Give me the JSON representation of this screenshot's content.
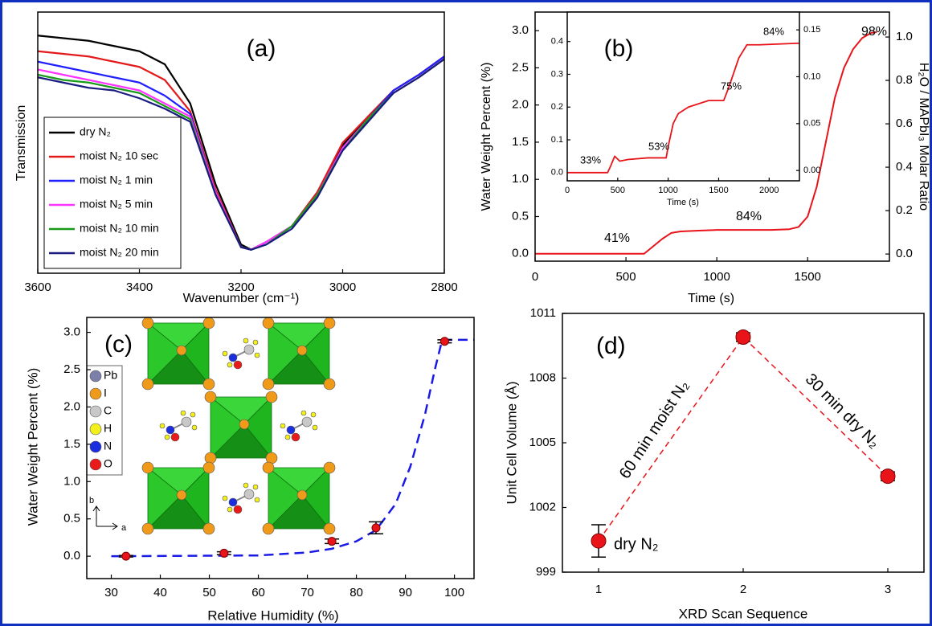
{
  "chart_data": [
    {
      "type": "line",
      "title": "(a)",
      "x_label": "Wavenumber (cm⁻¹)",
      "y_label": "Transmission",
      "x": [
        3600,
        3550,
        3500,
        3450,
        3400,
        3350,
        3300,
        3250,
        3200,
        3180,
        3150,
        3100,
        3050,
        3000,
        2950,
        2900,
        2850,
        2800
      ],
      "xlim": [
        3600,
        2800
      ],
      "xticks": [
        3600,
        3400,
        3200,
        3000,
        2800
      ],
      "ylim": [
        0,
        100
      ],
      "legend": "lower left",
      "series": [
        {
          "name": "dry N₂",
          "color": "#000000",
          "values": [
            91,
            90,
            89,
            87,
            85,
            80,
            65,
            34,
            11,
            9,
            12,
            18,
            31,
            49,
            60,
            70,
            76,
            83
          ]
        },
        {
          "name": "moist N₂ 10 sec",
          "color": "#e31a1c",
          "values": [
            85,
            84,
            83,
            81,
            79,
            74,
            62,
            32,
            10,
            9,
            12,
            18,
            31,
            50,
            60,
            70,
            76,
            83
          ]
        },
        {
          "name": "moist N₂ 1 min",
          "color": "#1f1fff",
          "values": [
            81,
            79,
            77,
            75,
            73,
            68,
            61,
            31,
            10,
            9,
            12,
            18,
            30,
            48,
            59,
            70,
            76,
            83
          ]
        },
        {
          "name": "moist N₂ 5 min",
          "color": "#ff33ff",
          "values": [
            78,
            76,
            74,
            72,
            70,
            65,
            60,
            31,
            10,
            9,
            12,
            18,
            30,
            48,
            59,
            69,
            75,
            82
          ]
        },
        {
          "name": "moist N₂ 10 min",
          "color": "#1a9a1a",
          "values": [
            76,
            74,
            73,
            71,
            69,
            64,
            59,
            30,
            10,
            9,
            11,
            18,
            30,
            47,
            59,
            69,
            75,
            82
          ]
        },
        {
          "name": "moist N₂ 20 min",
          "color": "#1a1a80",
          "values": [
            75,
            73,
            71,
            70,
            67,
            63,
            58,
            30,
            10,
            9,
            11,
            17,
            29,
            47,
            58,
            69,
            75,
            82
          ]
        }
      ]
    },
    {
      "type": "line",
      "title": "(b)",
      "x_label": "Time (s)",
      "y_label": "Water Weight Percent (%)",
      "y2_label": "H₂O / MAPbI₃ Molar Ratio",
      "x": [
        0,
        600,
        650,
        700,
        750,
        800,
        900,
        1000,
        1100,
        1200,
        1300,
        1400,
        1450,
        1500,
        1550,
        1600,
        1650,
        1700,
        1750,
        1800,
        1850,
        1880
      ],
      "xlim": [
        0,
        1950
      ],
      "xticks": [
        0,
        500,
        1000,
        1500
      ],
      "ylim": [
        -0.1,
        3.25
      ],
      "yticks": [
        {
          "value": 0,
          "label": "0.0"
        },
        0.5,
        {
          "value": 1,
          "label": "1.0"
        },
        1.5,
        {
          "value": 2,
          "label": "2.0"
        },
        2.5,
        {
          "value": 3,
          "label": "3.0"
        }
      ],
      "y2lim": [
        -0.033,
        1.115
      ],
      "y2ticks": [
        {
          "value": 0,
          "label": "0.0"
        },
        0.2,
        0.4,
        0.6,
        0.8,
        {
          "value": 1,
          "label": "1.0"
        }
      ],
      "series": [
        {
          "color": "#e8141a",
          "values": [
            0,
            0,
            0.1,
            0.2,
            0.28,
            0.3,
            0.31,
            0.32,
            0.32,
            0.32,
            0.32,
            0.33,
            0.36,
            0.5,
            0.9,
            1.5,
            2.1,
            2.5,
            2.75,
            2.9,
            2.97,
            2.98
          ]
        }
      ],
      "annotations": [
        "41%",
        "84%",
        "98%"
      ]
    },
    {
      "type": "line",
      "x_label": "Time (s)",
      "x": [
        0,
        400,
        430,
        470,
        520,
        600,
        800,
        980,
        1000,
        1050,
        1100,
        1200,
        1400,
        1550,
        1600,
        1700,
        1780,
        1900,
        2300
      ],
      "xlim": [
        0,
        2300
      ],
      "xticks": [
        0,
        500,
        1000,
        1500,
        2000
      ],
      "ylim": [
        -0.025,
        0.49
      ],
      "yticks": [
        {
          "value": 0,
          "label": "0.0"
        },
        0.1,
        0.2,
        0.3,
        0.4
      ],
      "y2lim": [
        -0.011,
        0.169
      ],
      "y2ticks": [
        {
          "value": 0,
          "label": "0.00"
        },
        0.05,
        {
          "value": 0.1,
          "label": "0.10"
        },
        0.15
      ],
      "series": [
        {
          "color": "#e8141a",
          "values": [
            0,
            0,
            0.02,
            0.05,
            0.035,
            0.04,
            0.045,
            0.045,
            0.08,
            0.15,
            0.18,
            0.2,
            0.22,
            0.22,
            0.26,
            0.35,
            0.39,
            0.39,
            0.395
          ]
        }
      ],
      "annotations": [
        "33%",
        "53%",
        "75%",
        "84%"
      ]
    },
    {
      "type": "scatter",
      "title": "(c)",
      "x_label": "Relative Humidity (%)",
      "y_label": "Water Weight Percent (%)",
      "xlim": [
        25,
        104
      ],
      "xticks": [
        30,
        40,
        50,
        60,
        70,
        80,
        90,
        100
      ],
      "ylim": [
        -0.3,
        3.2
      ],
      "yticks": [
        {
          "value": 0,
          "label": "0.0"
        },
        0.5,
        {
          "value": 1,
          "label": "1.0"
        },
        1.5,
        {
          "value": 2,
          "label": "2.0"
        },
        2.5,
        {
          "value": 3,
          "label": "3.0"
        }
      ],
      "series": [
        {
          "mode": "lines",
          "line_style": "dashed",
          "color": "#1a1ae6",
          "x": [
            30,
            60,
            70,
            75,
            80,
            84,
            88,
            91,
            94,
            96,
            97.5,
            98,
            104
          ],
          "values": [
            0,
            0.01,
            0.05,
            0.1,
            0.2,
            0.35,
            0.7,
            1.2,
            1.9,
            2.5,
            2.9,
            2.9,
            2.9
          ]
        },
        {
          "mode": "markers",
          "color": "#e8141a",
          "x": [
            33,
            53,
            75,
            84,
            98
          ],
          "values": [
            0,
            0.04,
            0.2,
            0.38,
            2.88
          ],
          "errors": [
            0.01,
            0.02,
            0.03,
            0.08,
            0.02
          ]
        }
      ],
      "structure_legend": [
        {
          "label": "Pb",
          "color": "#7c80a8"
        },
        {
          "label": "I",
          "color": "#f09a1a"
        },
        {
          "label": "C",
          "color": "#c8c8c8"
        },
        {
          "label": "H",
          "color": "#f2ef1a"
        },
        {
          "label": "N",
          "color": "#1a2ee0"
        },
        {
          "label": "O",
          "color": "#e81a1a"
        }
      ],
      "lattice_axes": [
        "b",
        "a"
      ]
    },
    {
      "type": "scatter",
      "title": "(d)",
      "x_label": "XRD Scan Sequence",
      "y_label": "Unit Cell Volume (Å)",
      "x": [
        1,
        2,
        3
      ],
      "xlim": [
        0.75,
        3.25
      ],
      "xticks": [
        1,
        2,
        3
      ],
      "ylim": [
        999,
        1011
      ],
      "yticks": [
        999,
        1002,
        1005,
        1008,
        1011
      ],
      "series": [
        {
          "mode": "markers",
          "line_style": "dashed",
          "color": "#e8141a",
          "values": [
            1000.45,
            1009.9,
            1003.45
          ],
          "errors": [
            0.75,
            0.2,
            0.2
          ]
        }
      ],
      "annotations": [
        "60 min moist N₂",
        "30 min dry N₂",
        "dry N₂"
      ]
    }
  ]
}
